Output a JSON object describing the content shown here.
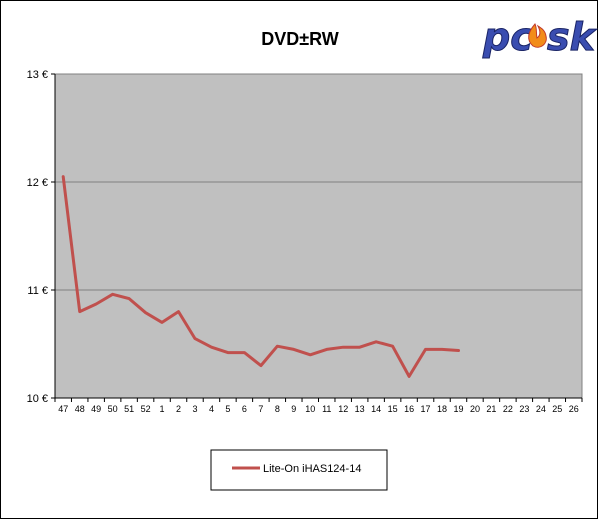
{
  "chart_data": {
    "type": "line",
    "title": "DVD±RW",
    "xlabel": "",
    "ylabel": "",
    "ylim": [
      10,
      13
    ],
    "yticks": [
      "10 €",
      "11 €",
      "12 €",
      "13 €"
    ],
    "ytick_values": [
      10,
      11,
      12,
      13
    ],
    "categories": [
      "47",
      "48",
      "49",
      "50",
      "51",
      "52",
      "1",
      "2",
      "3",
      "4",
      "5",
      "6",
      "7",
      "8",
      "9",
      "10",
      "11",
      "12",
      "13",
      "14",
      "15",
      "16",
      "17",
      "18",
      "19",
      "20",
      "21",
      "22",
      "23",
      "24",
      "25",
      "26"
    ],
    "series": [
      {
        "name": "Lite-On iHAS124-14",
        "color": "#c0504d",
        "values": [
          12.05,
          10.8,
          10.87,
          10.96,
          10.92,
          10.79,
          10.7,
          10.8,
          10.55,
          10.47,
          10.42,
          10.42,
          10.3,
          10.48,
          10.45,
          10.4,
          10.45,
          10.47,
          10.47,
          10.52,
          10.48,
          10.2,
          10.45,
          10.45,
          10.44,
          null,
          null,
          null,
          null,
          null,
          null,
          null
        ]
      }
    ],
    "grid": true,
    "plot_background": "#c0c0c0",
    "legend_position": "bottom"
  },
  "logo": {
    "text": "pc✱sk",
    "alt": "pcsk"
  }
}
